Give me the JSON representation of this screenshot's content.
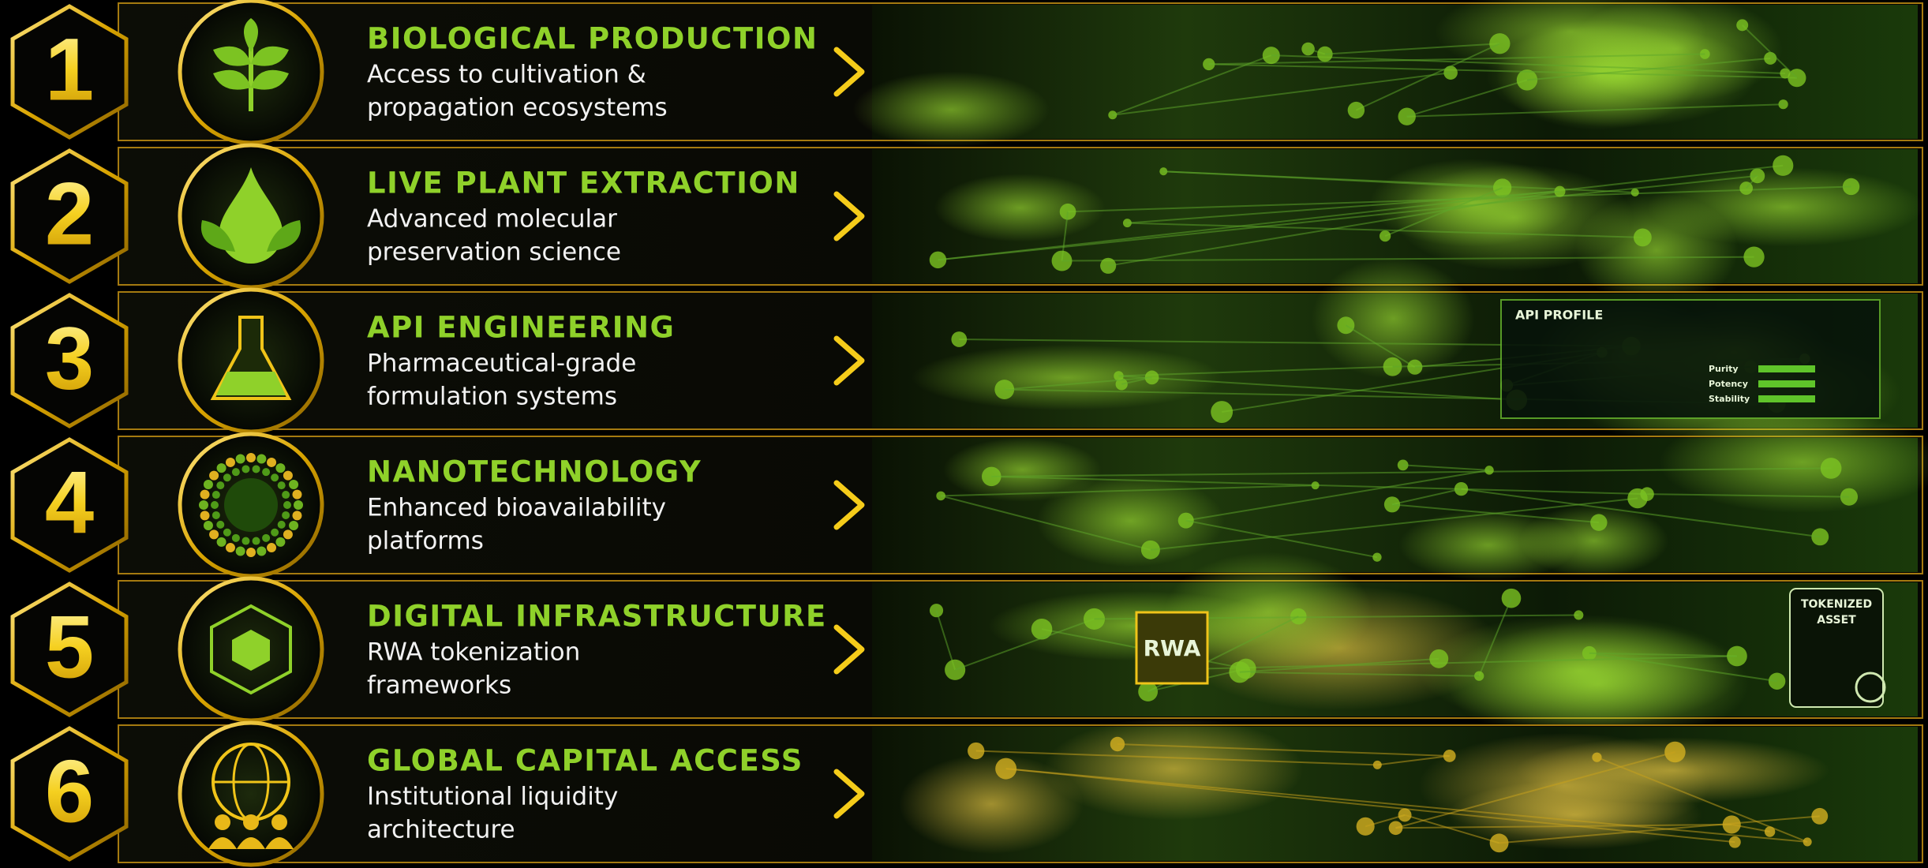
{
  "rows": [
    {
      "number": 1,
      "title": "BIOLOGICAL PRODUCTION",
      "description": [
        "Access to cultivation &",
        "propagation ecosystems"
      ]
    },
    {
      "number": 2,
      "title": "LIVE PLANT EXTRACTION",
      "description": [
        "Advanced molecular",
        "preservation science"
      ]
    },
    {
      "number": 3,
      "title": "API ENGINEERING",
      "description": [
        "Pharmaceutical-grade",
        "formulation systems"
      ],
      "image_texts": [
        "API PROFILE",
        "Purity",
        "Potency",
        "Stability"
      ]
    },
    {
      "number": 4,
      "title": "NANOTECHNOLOGY",
      "description": [
        "Enhanced bioavailability",
        "platforms"
      ]
    },
    {
      "number": 5,
      "title": "DIGITAL INFRASTRUCTURE",
      "description": [
        "RWA tokenization",
        "frameworks"
      ],
      "image_texts": [
        "RWA",
        "TOKENIZED",
        "ASSET"
      ]
    },
    {
      "number": 6,
      "title": "GLOBAL CAPITAL ACCESS",
      "description": [
        "Institutional liquidity",
        "architecture"
      ]
    }
  ]
}
